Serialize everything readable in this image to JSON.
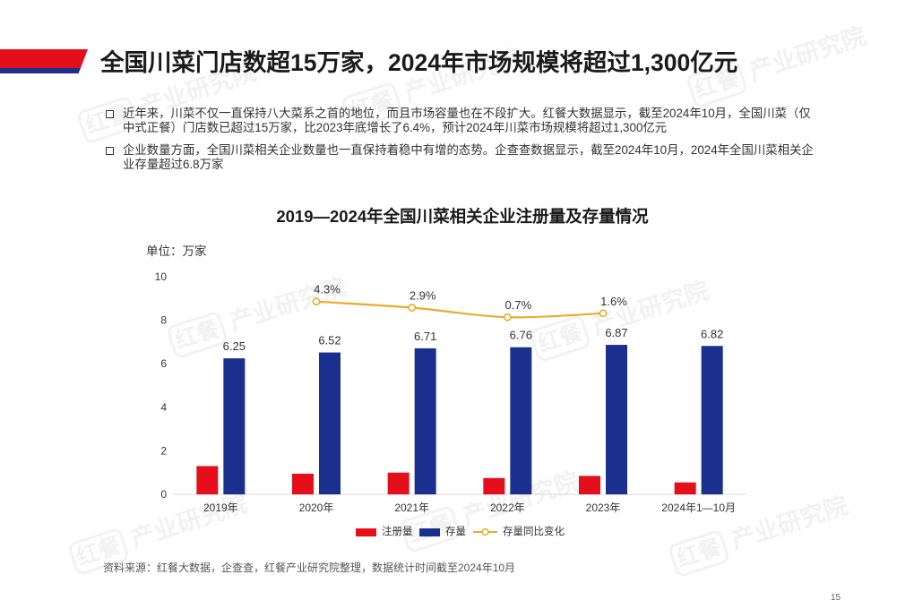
{
  "brand_colors": {
    "red": "#e50f1c",
    "blue": "#1b2f8e"
  },
  "header": {
    "title": "全国川菜门店数超15万家，2024年市场规模将超过1,300亿元"
  },
  "bullet_icon": "hollow-square",
  "bullets": [
    "近年来，川菜不仅一直保持八大菜系之首的地位，而且市场容量也在不段扩大。红餐大数据显示，截至2024年10月，全国川菜（仅中式正餐）门店数已超过15万家，比2023年底增长了6.4%，预计2024年川菜市场规模将超过1,300亿元",
    "企业数量方面，全国川菜相关企业数量也一直保持着稳中有增的态势。企查查数据显示，截至2024年10月，2024年全国川菜相关企业存量超过6.8万家"
  ],
  "chart_data": {
    "type": "bar",
    "title": "2019—2024年全国川菜相关企业注册量及存量情况",
    "unit_label": "单位：万家",
    "categories": [
      "2019年",
      "2020年",
      "2021年",
      "2022年",
      "2023年",
      "2024年1—10月"
    ],
    "ylim": [
      0,
      10
    ],
    "yticks": [
      0,
      2,
      4,
      6,
      8,
      10
    ],
    "grid": false,
    "legend_position": "bottom",
    "series": [
      {
        "name": "注册量",
        "type": "bar",
        "color": "#e50f1c",
        "data_labels": false,
        "values": [
          1.3,
          0.95,
          1.0,
          0.75,
          0.85,
          0.55
        ]
      },
      {
        "name": "存量",
        "type": "bar",
        "color": "#1b2f8e",
        "data_labels": true,
        "values": [
          6.25,
          6.52,
          6.71,
          6.76,
          6.87,
          6.82
        ]
      },
      {
        "name": "存量同比变化",
        "type": "line",
        "axis": "secondary",
        "unit": "%",
        "marker": "hollow-circle",
        "color": "#e9ab2c",
        "data_labels": true,
        "values": [
          null,
          4.3,
          2.9,
          0.7,
          1.6,
          null
        ]
      }
    ]
  },
  "source": "资料来源：红餐大数据，企查查，红餐产业研究院整理，数据统计时间截至2024年10月",
  "page_number": "15",
  "watermark": {
    "logo": "红餐",
    "text": "产业研究院"
  }
}
